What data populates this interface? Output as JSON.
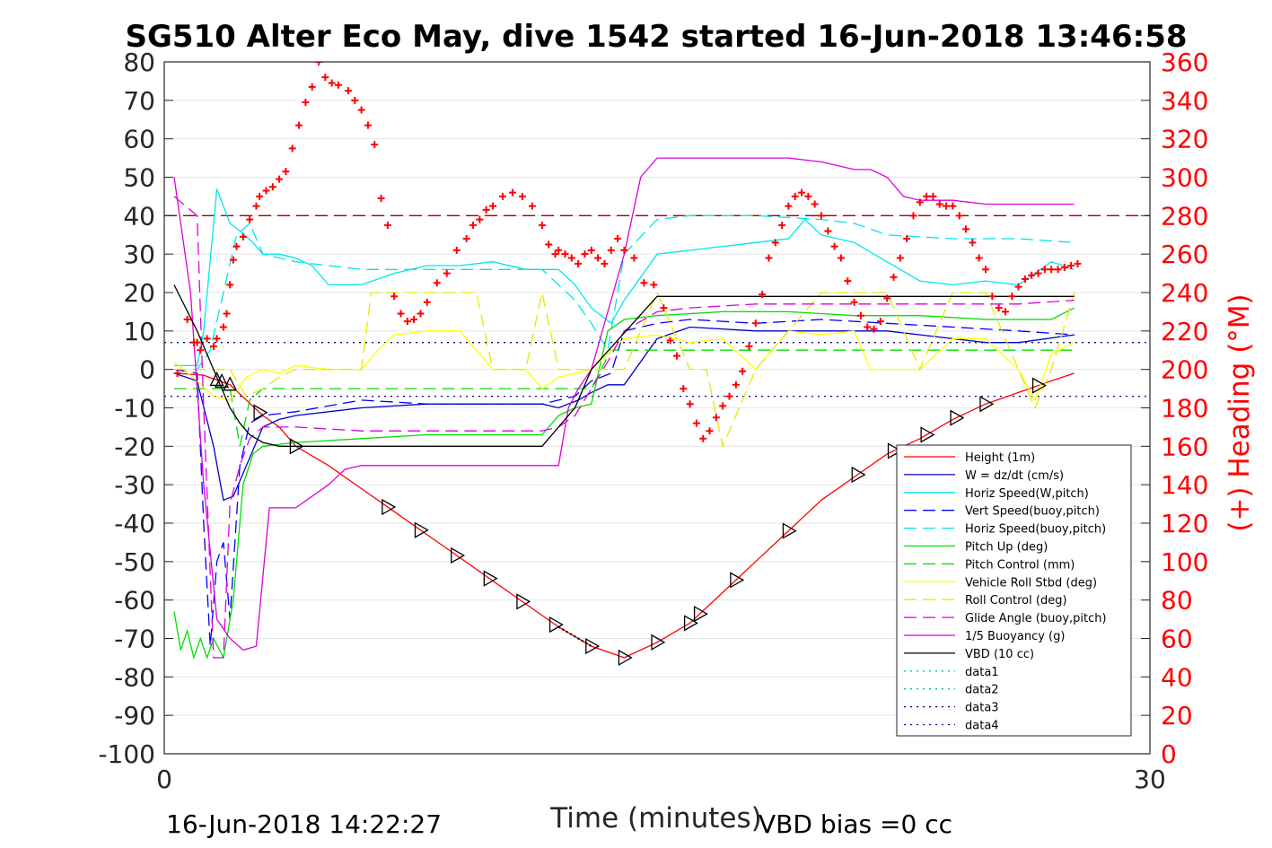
{
  "chart_data": {
    "type": "line",
    "title": "SG510 Alter Eco May, dive 1542 started 16-Jun-2018 13:46:58",
    "xlabel": "Time (minutes)",
    "ylabel": "",
    "ylabel_right": "(+) Heading (°M)",
    "xlim": [
      0,
      30
    ],
    "ylim": [
      -100,
      80
    ],
    "ylim_right": [
      0,
      360
    ],
    "xticks": [
      "0",
      "30"
    ],
    "yticks": [
      "80",
      "70",
      "60",
      "50",
      "40",
      "30",
      "20",
      "10",
      "0",
      "-10",
      "-20",
      "-30",
      "-40",
      "-50",
      "-60",
      "-70",
      "-80",
      "-90",
      "-100"
    ],
    "yticks_right": [
      "360",
      "340",
      "320",
      "300",
      "280",
      "260",
      "240",
      "220",
      "200",
      "180",
      "160",
      "140",
      "120",
      "100",
      "80",
      "60",
      "40",
      "20",
      "0"
    ],
    "footer_left": "16-Jun-2018 14:22:27",
    "footer_right": "VBD bias =0 cc",
    "grid": true,
    "legend_position": "lower-right",
    "colors": {
      "height": "#ff0000",
      "w": "#0000cc",
      "horiz": "#00e5ee",
      "vert_buoy": "#0000ff",
      "horiz_buoy": "#00e5ee",
      "pitch": "#00dd00",
      "pitch_ctrl": "#00dd00",
      "roll": "#ffff00",
      "roll_ctrl": "#e8e800",
      "glide": "#dd00dd",
      "buoy": "#dd00dd",
      "vbd": "#000000",
      "heading": "#ff0000",
      "heading_ref": "#a00000",
      "data_green": "#00cc66",
      "data_blue": "#000080"
    },
    "legend": [
      {
        "label": "Height (1m)",
        "color": "#ff0000",
        "dash": "solid"
      },
      {
        "label": "W = dz/dt (cm/s)",
        "color": "#0000cc",
        "dash": "solid"
      },
      {
        "label": "Horiz Speed(W,pitch)",
        "color": "#00e5ee",
        "dash": "solid"
      },
      {
        "label": "Vert Speed(buoy,pitch)",
        "color": "#0000ff",
        "dash": "dash"
      },
      {
        "label": "Horiz Speed(buoy,pitch)",
        "color": "#00e5ee",
        "dash": "dash"
      },
      {
        "label": "Pitch Up (deg)",
        "color": "#00dd00",
        "dash": "solid"
      },
      {
        "label": "Pitch Control (mm)",
        "color": "#00dd00",
        "dash": "dash"
      },
      {
        "label": "Vehicle Roll Stbd (deg)",
        "color": "#ffff00",
        "dash": "solid"
      },
      {
        "label": "Roll Control (deg)",
        "color": "#e8e800",
        "dash": "dash"
      },
      {
        "label": "Glide Angle (buoy,pitch)",
        "color": "#dd00dd",
        "dash": "dash"
      },
      {
        "label": "1/5 Buoyancy (g)",
        "color": "#dd00dd",
        "dash": "solid"
      },
      {
        "label": "VBD (10 cc)",
        "color": "#000000",
        "dash": "solid"
      },
      {
        "label": "data1",
        "color": "#00cc66",
        "dash": "dot"
      },
      {
        "label": "data2",
        "color": "#00cc66",
        "dash": "dot"
      },
      {
        "label": "data3",
        "color": "#000080",
        "dash": "dot"
      },
      {
        "label": "data4",
        "color": "#000080",
        "dash": "dot"
      }
    ],
    "series": [
      {
        "name": "Height (1m)",
        "key": "height",
        "x": [
          0.3,
          1.2,
          2.0,
          2.5,
          3.0,
          3.5,
          4.0,
          5.0,
          6.0,
          7.0,
          8.0,
          9.0,
          10.0,
          11.0,
          12.0,
          13.0,
          14.0,
          15.0,
          16.0,
          17.0,
          18.0,
          19.0,
          20.0,
          21.0,
          22.0,
          23.0,
          24.0,
          25.0,
          26.0,
          27.0,
          27.7
        ],
        "y": [
          -1,
          -1.5,
          -4,
          -8,
          -12,
          -15,
          -20,
          -25,
          -31,
          -37,
          -43,
          -49,
          -55,
          -61,
          -67,
          -72,
          -75,
          -71,
          -66,
          -58,
          -50,
          -42,
          -34,
          -28,
          -22,
          -18,
          -13,
          -9,
          -6,
          -3,
          -1
        ]
      },
      {
        "name": "W = dz/dt (cm/s)",
        "key": "w",
        "x": [
          0.3,
          1.0,
          1.5,
          1.8,
          2.1,
          2.5,
          3.0,
          3.5,
          4.0,
          6.0,
          8.0,
          10.0,
          11.5,
          12.0,
          12.6,
          13.0,
          13.5,
          14.0,
          15.0,
          16.0,
          18.0,
          20.0,
          22.0,
          23.0,
          25.0,
          26.0,
          27.7
        ],
        "y": [
          -1,
          -3,
          -20,
          -34,
          -33,
          -25,
          -15,
          -13,
          -12,
          -10,
          -9,
          -9,
          -9,
          -10,
          -8,
          -6,
          -4,
          -4,
          8,
          11,
          10,
          10,
          10,
          9,
          7,
          7,
          9
        ]
      },
      {
        "name": "Horiz Speed(W,pitch)",
        "key": "horiz",
        "x": [
          0.3,
          1.0,
          1.2,
          1.6,
          2.0,
          2.3,
          2.7,
          3.0,
          3.5,
          4.0,
          4.5,
          5.0,
          6.0,
          7.0,
          8.0,
          9.0,
          10.0,
          11.0,
          12.0,
          12.5,
          13.0,
          13.3,
          13.6,
          14.0,
          15.0,
          16.0,
          17.0,
          18.0,
          19.0,
          19.5,
          20.0,
          21.0,
          22.0,
          23.0,
          24.0,
          25.0,
          26.0,
          27.0,
          27.7
        ],
        "y": [
          1,
          1,
          10,
          47,
          38,
          36,
          33,
          30,
          30,
          29,
          27,
          22,
          22,
          25,
          27,
          27,
          28,
          26,
          26,
          22,
          16,
          14,
          12,
          18,
          30,
          31,
          32,
          33,
          34,
          39,
          35,
          33,
          28,
          23,
          22,
          23,
          22,
          28,
          26
        ]
      },
      {
        "name": "Vert Speed(buoy,pitch)",
        "key": "vert_buoy",
        "x": [
          0.3,
          1.0,
          1.2,
          1.4,
          1.6,
          1.8,
          2.0,
          2.3,
          2.6,
          3.0,
          4.0,
          6.0,
          8.0,
          10.0,
          11.5,
          12.0,
          12.5,
          13.0,
          13.6,
          14.0,
          15.0,
          16.0,
          18.0,
          20.0,
          22.0,
          24.0,
          26.0,
          27.7
        ],
        "y": [
          0,
          -1,
          -40,
          -72,
          -50,
          -45,
          -65,
          -25,
          -14,
          -12,
          -11,
          -8,
          -9,
          -9,
          -9,
          -8,
          -7,
          -3,
          -1,
          10,
          12,
          13,
          12,
          13,
          12,
          11,
          10,
          9
        ]
      },
      {
        "name": "Horiz Speed(buoy,pitch)",
        "key": "horiz_buoy",
        "x": [
          0.3,
          1.0,
          1.4,
          1.8,
          2.2,
          2.6,
          3.0,
          4.0,
          5.0,
          6.0,
          8.0,
          10.0,
          11.5,
          12.0,
          12.5,
          13.0,
          13.5,
          14.0,
          15.0,
          16.0,
          18.0,
          20.0,
          21.0,
          22.0,
          24.0,
          26.0,
          27.7
        ],
        "y": [
          0,
          0,
          5,
          20,
          35,
          38,
          30,
          28,
          27,
          26,
          26,
          26,
          26,
          22,
          18,
          12,
          5,
          30,
          39,
          40,
          40,
          39,
          38,
          35,
          34,
          34,
          33
        ]
      },
      {
        "name": "Pitch Up (deg)",
        "key": "pitch",
        "x": [
          0.3,
          0.5,
          0.7,
          0.9,
          1.1,
          1.3,
          1.5,
          1.8,
          2.1,
          2.4,
          2.7,
          3.0,
          4.0,
          6.0,
          8.0,
          10.0,
          11.5,
          12.0,
          12.5,
          13.0,
          13.5,
          14.0,
          15.0,
          17.0,
          19.0,
          21.0,
          23.0,
          25.0,
          27.0,
          27.7
        ],
        "y": [
          -63,
          -73,
          -68,
          -75,
          -70,
          -75,
          -70,
          -75,
          -60,
          -30,
          -22,
          -20,
          -19,
          -18,
          -17,
          -17,
          -17,
          -12,
          -10,
          -9,
          10,
          13,
          14,
          15,
          15,
          14,
          14,
          13,
          13,
          16
        ]
      },
      {
        "name": "Pitch Control (mm)",
        "key": "pitch_ctrl",
        "x": [
          0.3,
          1.5,
          2.0,
          2.3,
          2.6,
          3.0,
          12.0,
          13.0,
          13.6,
          14.0,
          27.7
        ],
        "y": [
          -5,
          -5,
          -5,
          -20,
          -8,
          -5,
          -5,
          -5,
          5,
          5,
          5
        ]
      },
      {
        "name": "Vehicle Roll Stbd (deg)",
        "key": "roll",
        "x": [
          0.3,
          1.0,
          1.5,
          2.0,
          2.5,
          3.0,
          3.5,
          4.0,
          5.0,
          6.0,
          6.5,
          7.0,
          8.0,
          9.0,
          9.5,
          10.0,
          11.0,
          11.5,
          12.0,
          13.0,
          14.0,
          15.0,
          16.0,
          17.0,
          18.0,
          19.0,
          20.0,
          21.0,
          21.5,
          22.0,
          23.0,
          24.0,
          25.0,
          26.0,
          26.5,
          27.0,
          27.7
        ],
        "y": [
          2,
          -3,
          -7,
          -8,
          -2,
          0,
          -1,
          1,
          0,
          0,
          5,
          9,
          10,
          10,
          5,
          0,
          0,
          -5,
          -2,
          0,
          8,
          9,
          7,
          8,
          0,
          10,
          9,
          10,
          0,
          0,
          0,
          8,
          8,
          0,
          -8,
          4,
          7
        ]
      },
      {
        "name": "Roll Control (deg)",
        "key": "roll_ctrl",
        "x": [
          0.3,
          2.0,
          2.5,
          3.0,
          3.5,
          4.0,
          5.0,
          6.0,
          6.3,
          7.0,
          8.0,
          9.0,
          9.5,
          10.0,
          11.0,
          11.5,
          12.0,
          13.0,
          14.0,
          15.0,
          16.0,
          16.5,
          17.0,
          18.0,
          20.0,
          21.0,
          22.0,
          23.0,
          24.0,
          25.0,
          26.0,
          26.5,
          27.0,
          27.7
        ],
        "y": [
          0,
          0,
          -7,
          -5,
          -2,
          0,
          0,
          0,
          20,
          20,
          20,
          20,
          20,
          0,
          0,
          20,
          0,
          0,
          0,
          20,
          0,
          0,
          -20,
          0,
          20,
          20,
          20,
          0,
          20,
          20,
          0,
          -10,
          0,
          20
        ]
      },
      {
        "name": "Glide Angle (buoy,pitch)",
        "key": "glide",
        "x": [
          0.3,
          1.0,
          1.2,
          1.5,
          1.8,
          2.0,
          2.3,
          2.6,
          3.0,
          4.0,
          6.0,
          8.0,
          10.0,
          11.5,
          12.0,
          12.5,
          13.0,
          13.5,
          14.0,
          15.0,
          16.0,
          18.0,
          20.0,
          22.0,
          24.0,
          26.0,
          27.7
        ],
        "y": [
          45,
          40,
          -10,
          -75,
          -75,
          -35,
          -25,
          -18,
          -15,
          -15,
          -16,
          -16,
          -16,
          -16,
          -15,
          -12,
          -5,
          2,
          10,
          15,
          16,
          17,
          17,
          17,
          17,
          17,
          18
        ]
      },
      {
        "name": "1/5 Buoyancy (g)",
        "key": "buoy",
        "x": [
          0.3,
          0.8,
          1.2,
          1.6,
          2.0,
          2.4,
          2.8,
          3.2,
          4.0,
          5.0,
          5.5,
          6.0,
          8.0,
          10.0,
          11.5,
          12.0,
          12.3,
          12.6,
          13.0,
          14.0,
          14.5,
          15.0,
          16.0,
          18.0,
          19.0,
          20.0,
          21.0,
          21.5,
          22.0,
          22.5,
          23.0,
          24.0,
          25.0,
          27.7
        ],
        "y": [
          50,
          20,
          -30,
          -65,
          -70,
          -73,
          -72,
          -36,
          -36,
          -30,
          -26,
          -25,
          -25,
          -25,
          -25,
          -25,
          -10,
          -5,
          0,
          30,
          50,
          55,
          55,
          55,
          55,
          54,
          52,
          52,
          50,
          45,
          44,
          44,
          43,
          43
        ]
      },
      {
        "name": "VBD (10 cc)",
        "key": "vbd",
        "x": [
          0.3,
          1.0,
          1.5,
          2.0,
          2.3,
          2.6,
          3.0,
          3.5,
          4.0,
          11.5,
          12.5,
          13.0,
          15.0,
          15.3,
          27.7
        ],
        "y": [
          22,
          10,
          0,
          -10,
          -14,
          -17,
          -19,
          -20,
          -20,
          -20,
          -10,
          0,
          19,
          19,
          19
        ]
      }
    ],
    "heading": {
      "name": "(+) Heading (°M)",
      "axis": "right",
      "reference": 280,
      "x": [
        0.4,
        0.7,
        0.9,
        1.0,
        1.1,
        1.3,
        1.5,
        1.6,
        1.8,
        1.9,
        2.0,
        2.1,
        2.2,
        2.4,
        2.6,
        2.8,
        2.9,
        3.1,
        3.3,
        3.5,
        3.7,
        3.9,
        4.1,
        4.3,
        4.5,
        4.7,
        4.9,
        5.1,
        5.3,
        5.6,
        5.8,
        6.0,
        6.2,
        6.4,
        6.6,
        6.8,
        7.0,
        7.2,
        7.4,
        7.6,
        7.8,
        8.0,
        8.3,
        8.6,
        8.9,
        9.2,
        9.4,
        9.6,
        9.8,
        10.0,
        10.3,
        10.6,
        10.9,
        11.2,
        11.5,
        11.7,
        11.9,
        12.0,
        12.2,
        12.4,
        12.6,
        12.8,
        13.0,
        13.2,
        13.4,
        13.6,
        13.8,
        14.0,
        14.3,
        14.6,
        14.9,
        15.2,
        15.4,
        15.6,
        15.8,
        16.0,
        16.2,
        16.4,
        16.6,
        16.8,
        17.0,
        17.2,
        17.4,
        17.6,
        17.8,
        18.0,
        18.2,
        18.4,
        18.6,
        18.8,
        19.0,
        19.2,
        19.4,
        19.6,
        19.8,
        20.0,
        20.2,
        20.4,
        20.6,
        20.8,
        21.0,
        21.2,
        21.4,
        21.6,
        21.8,
        22.0,
        22.2,
        22.4,
        22.6,
        22.8,
        23.0,
        23.2,
        23.4,
        23.6,
        23.8,
        24.0,
        24.2,
        24.4,
        24.6,
        24.8,
        25.0,
        25.2,
        25.4,
        25.6,
        25.8,
        26.0,
        26.2,
        26.4,
        26.6,
        26.8,
        27.0,
        27.2,
        27.4,
        27.6,
        27.8
      ],
      "y": [
        198,
        226,
        214,
        214,
        210,
        216,
        212,
        216,
        222,
        229,
        244,
        257,
        264,
        269,
        278,
        285,
        290,
        293,
        295,
        299,
        303,
        315,
        327,
        339,
        347,
        360,
        352,
        349,
        348,
        345,
        340,
        335,
        327,
        317,
        289,
        275,
        238,
        229,
        225,
        226,
        229,
        235,
        245,
        250,
        262,
        268,
        275,
        278,
        283,
        285,
        290,
        292,
        290,
        285,
        275,
        265,
        260,
        262,
        260,
        258,
        255,
        260,
        262,
        258,
        255,
        262,
        268,
        262,
        258,
        245,
        244,
        232,
        215,
        207,
        190,
        182,
        172,
        164,
        168,
        175,
        181,
        186,
        192,
        199,
        212,
        224,
        239,
        258,
        266,
        275,
        285,
        290,
        292,
        290,
        286,
        280,
        272,
        264,
        258,
        246,
        235,
        228,
        222,
        221,
        225,
        237,
        248,
        258,
        268,
        280,
        287,
        290,
        290,
        286,
        285,
        285,
        280,
        273,
        266,
        258,
        252,
        238,
        232,
        230,
        238,
        243,
        247,
        249,
        250,
        252,
        252,
        252,
        253,
        254,
        255
      ]
    }
  }
}
